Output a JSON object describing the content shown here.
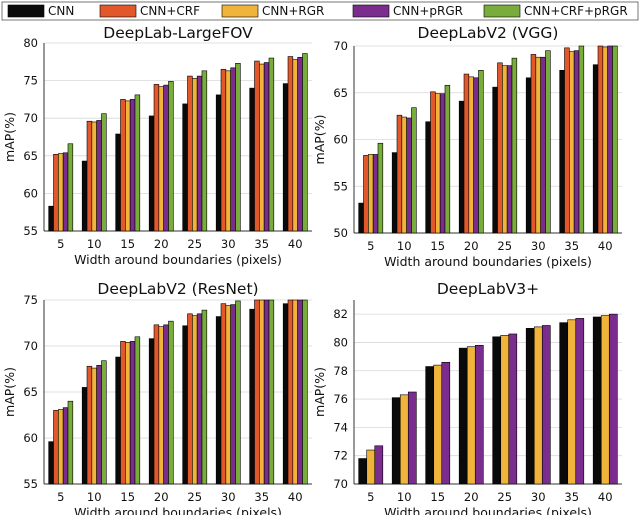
{
  "legend": {
    "placement": "top",
    "items": [
      {
        "label": "CNN",
        "color": "#0a0a0a"
      },
      {
        "label": "CNN+CRF",
        "color": "#e2582b"
      },
      {
        "label": "CNN+RGR",
        "color": "#f0b43a"
      },
      {
        "label": "CNN+pRGR",
        "color": "#7b2d8e"
      },
      {
        "label": "CNN+CRF+pRGR",
        "color": "#78ad3c"
      }
    ]
  },
  "chart_data": [
    {
      "type": "bar",
      "title": "DeepLab-LargeFOV",
      "xlabel": "Width around boundaries (pixels)",
      "ylabel": "mAP(%)",
      "ylim": [
        55,
        80
      ],
      "yticks": [
        55,
        60,
        65,
        70,
        75,
        80
      ],
      "grid": true,
      "categories": [
        "5",
        "10",
        "15",
        "20",
        "25",
        "30",
        "35",
        "40"
      ],
      "series": [
        {
          "name": "CNN",
          "values": [
            58.3,
            64.3,
            67.9,
            70.3,
            71.9,
            73.1,
            74.0,
            74.6
          ]
        },
        {
          "name": "CNN+CRF",
          "values": [
            65.2,
            69.6,
            72.5,
            74.5,
            75.6,
            76.5,
            77.6,
            78.2
          ]
        },
        {
          "name": "CNN+RGR",
          "values": [
            65.3,
            69.5,
            72.3,
            74.2,
            75.3,
            76.3,
            77.2,
            77.8
          ]
        },
        {
          "name": "CNN+pRGR",
          "values": [
            65.4,
            69.7,
            72.5,
            74.4,
            75.6,
            76.7,
            77.4,
            78.1
          ]
        },
        {
          "name": "CNN+CRF+pRGR",
          "values": [
            66.6,
            70.6,
            73.1,
            74.9,
            76.3,
            77.3,
            78.0,
            78.6
          ]
        }
      ]
    },
    {
      "type": "bar",
      "title": "DeepLabV2 (VGG)",
      "xlabel": "Width around boundaries (pixels)",
      "ylabel": "mAP(%)",
      "ylim": [
        50,
        70
      ],
      "yticks": [
        50,
        55,
        60,
        65,
        70
      ],
      "grid": true,
      "categories": [
        "5",
        "10",
        "15",
        "20",
        "25",
        "30",
        "35",
        "40"
      ],
      "series": [
        {
          "name": "CNN",
          "values": [
            53.2,
            58.6,
            61.9,
            64.1,
            65.6,
            66.6,
            67.4,
            68.0
          ]
        },
        {
          "name": "CNN+CRF",
          "values": [
            58.3,
            62.6,
            65.1,
            67.0,
            68.2,
            69.1,
            69.8,
            70.3
          ]
        },
        {
          "name": "CNN+RGR",
          "values": [
            58.4,
            62.4,
            64.9,
            66.7,
            67.9,
            68.8,
            69.4,
            69.9
          ]
        },
        {
          "name": "CNN+pRGR",
          "values": [
            58.4,
            62.3,
            64.9,
            66.6,
            67.9,
            68.8,
            69.5,
            70.0
          ]
        },
        {
          "name": "CNN+CRF+pRGR",
          "values": [
            59.6,
            63.4,
            65.8,
            67.4,
            68.7,
            69.5,
            70.1,
            70.6
          ]
        }
      ]
    },
    {
      "type": "bar",
      "title": "DeepLabV2 (ResNet)",
      "xlabel": "Width around boundaries (pixels)",
      "ylabel": "mAP(%)",
      "ylim": [
        55,
        75
      ],
      "yticks": [
        55,
        60,
        65,
        70,
        75
      ],
      "grid": true,
      "categories": [
        "5",
        "10",
        "15",
        "20",
        "25",
        "30",
        "35",
        "40"
      ],
      "series": [
        {
          "name": "CNN",
          "values": [
            59.6,
            65.5,
            68.8,
            70.8,
            72.2,
            73.2,
            74.0,
            74.6
          ]
        },
        {
          "name": "CNN+CRF",
          "values": [
            63.0,
            67.8,
            70.5,
            72.3,
            73.5,
            74.6,
            75.3,
            75.8
          ]
        },
        {
          "name": "CNN+RGR",
          "values": [
            63.1,
            67.6,
            70.4,
            72.1,
            73.3,
            74.4,
            75.1,
            75.6
          ]
        },
        {
          "name": "CNN+pRGR",
          "values": [
            63.3,
            67.9,
            70.5,
            72.3,
            73.5,
            74.5,
            75.2,
            75.7
          ]
        },
        {
          "name": "CNN+CRF+pRGR",
          "values": [
            64.0,
            68.4,
            71.0,
            72.7,
            73.9,
            74.9,
            75.5,
            76.0
          ]
        }
      ]
    },
    {
      "type": "bar",
      "title": "DeepLabV3+",
      "xlabel": "Width around boundaries (pixels)",
      "ylabel": "mAP(%)",
      "ylim": [
        70,
        83
      ],
      "yticks": [
        70,
        72,
        74,
        76,
        78,
        80,
        82
      ],
      "grid": true,
      "categories": [
        "5",
        "10",
        "15",
        "20",
        "25",
        "30",
        "35",
        "40"
      ],
      "series": [
        {
          "name": "CNN",
          "values": [
            71.8,
            76.1,
            78.3,
            79.6,
            80.4,
            81.0,
            81.4,
            81.8
          ]
        },
        {
          "name": "CNN+RGR",
          "values": [
            72.4,
            76.3,
            78.4,
            79.7,
            80.5,
            81.1,
            81.6,
            81.9
          ]
        },
        {
          "name": "CNN+pRGR",
          "values": [
            72.7,
            76.5,
            78.6,
            79.8,
            80.6,
            81.2,
            81.7,
            82.0
          ]
        }
      ]
    }
  ]
}
